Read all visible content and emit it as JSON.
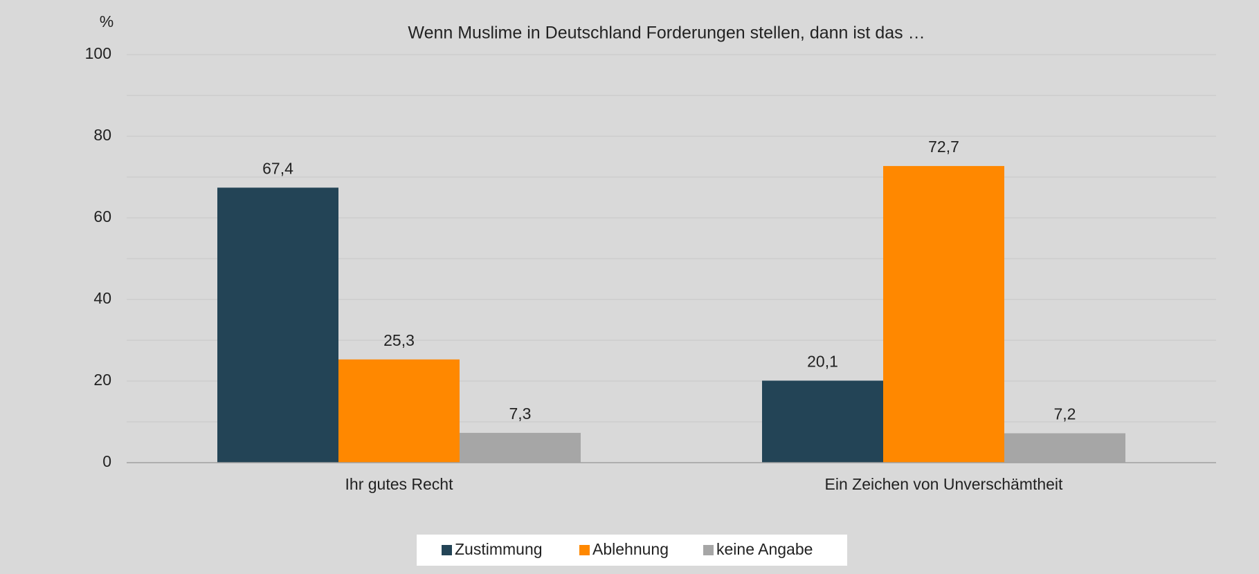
{
  "chart_data": {
    "type": "bar",
    "title": "Wenn Muslime in Deutschland Forderungen stellen, dann ist das …",
    "y_label": "%",
    "categories": [
      "Ihr gutes Recht",
      "Ein Zeichen von Unverschämtheit"
    ],
    "series": [
      {
        "name": "Zustimmung",
        "color": "#234456",
        "values": [
          67.4,
          20.1
        ],
        "value_labels": [
          "67,4",
          "20,1"
        ]
      },
      {
        "name": "Ablehnung",
        "color": "#ff8800",
        "values": [
          25.3,
          72.7
        ],
        "value_labels": [
          "25,3",
          "72,7"
        ]
      },
      {
        "name": "keine Angabe",
        "color": "#a6a6a6",
        "values": [
          7.3,
          7.2
        ],
        "value_labels": [
          "7,3",
          "7,2"
        ]
      }
    ],
    "ylim": [
      0,
      100
    ],
    "yticks": [
      0,
      20,
      40,
      60,
      80,
      100
    ],
    "grid": true,
    "legend": "bottom"
  }
}
